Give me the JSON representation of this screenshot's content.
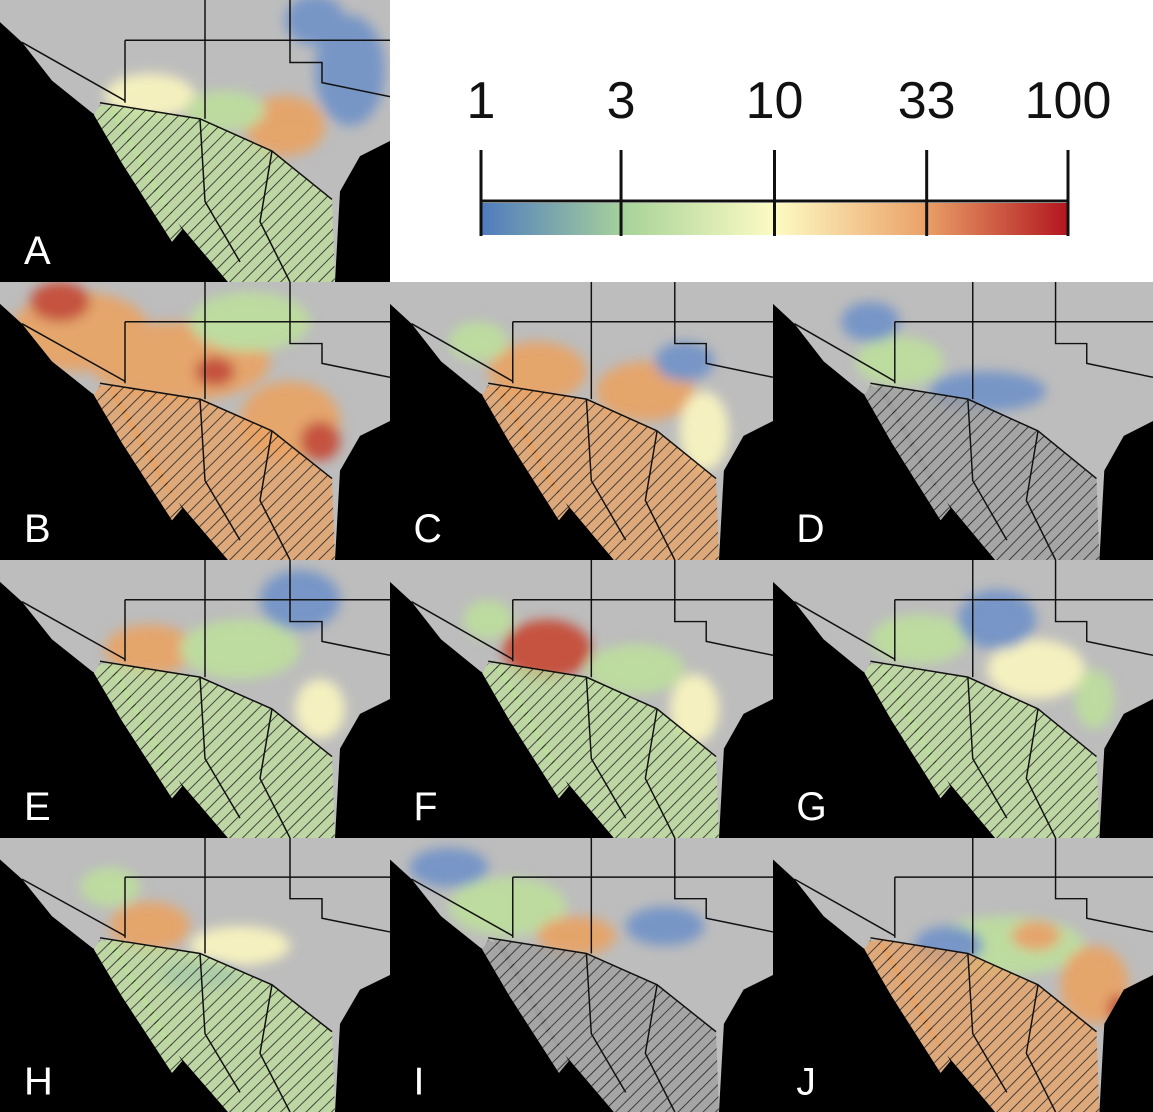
{
  "colorbar": {
    "ticks": [
      1,
      3,
      10,
      33,
      100
    ],
    "lim": [
      1,
      100
    ],
    "scale": "log"
  },
  "panels": [
    {
      "label": "A"
    },
    {
      "label": "B"
    },
    {
      "label": "C"
    },
    {
      "label": "D"
    },
    {
      "label": "E"
    },
    {
      "label": "F"
    },
    {
      "label": "G"
    },
    {
      "label": "H"
    },
    {
      "label": "I"
    },
    {
      "label": "J"
    }
  ]
}
